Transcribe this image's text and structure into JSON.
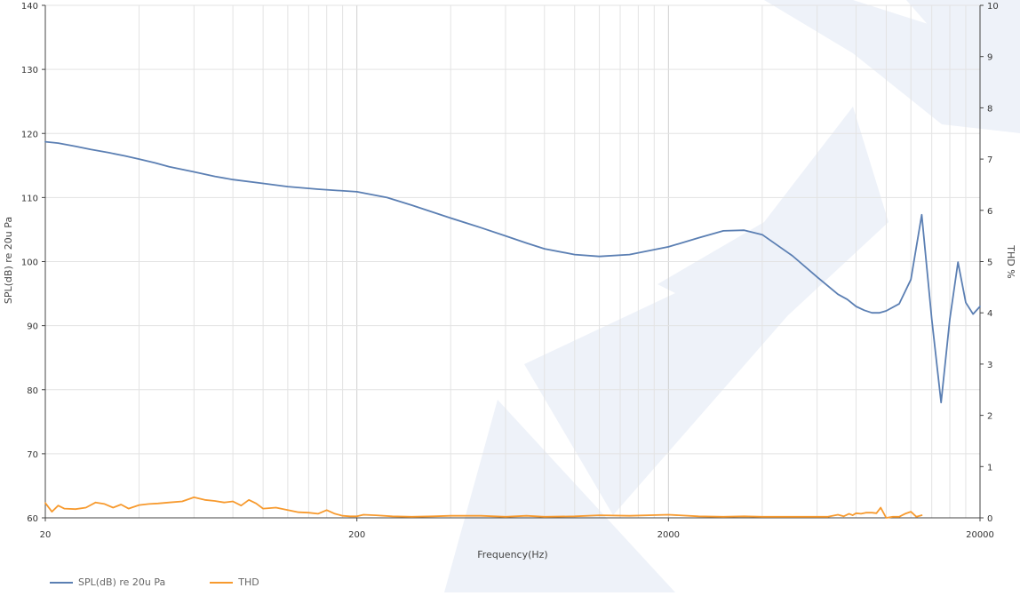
{
  "chart_data": {
    "type": "line",
    "title": "",
    "xlabel": "Frequency(Hz)",
    "ylabel": "SPL(dB) re 20u Pa",
    "y2label": "THD %",
    "x_scale": "log",
    "xlim": [
      20,
      20000
    ],
    "ylim": [
      60,
      140
    ],
    "y2lim": [
      0,
      10
    ],
    "x_ticks": [
      "20",
      "200",
      "2000",
      "20000"
    ],
    "y_ticks": [
      "60",
      "70",
      "80",
      "90",
      "100",
      "110",
      "120",
      "130",
      "140"
    ],
    "y2_ticks": [
      "0",
      "1",
      "2",
      "3",
      "4",
      "5",
      "6",
      "7",
      "8",
      "9",
      "10"
    ],
    "grid": true,
    "legend_position": "bottom-left",
    "series": [
      {
        "name": "SPL(dB) re 20u Pa",
        "axis": "left",
        "color": "#5b7fb3",
        "x": [
          20,
          22,
          25,
          28,
          32,
          36,
          40,
          45,
          50,
          60,
          70,
          80,
          100,
          120,
          150,
          200,
          250,
          300,
          400,
          500,
          600,
          700,
          800,
          1000,
          1200,
          1500,
          2000,
          2500,
          3000,
          3500,
          4000,
          5000,
          6000,
          7000,
          7500,
          8000,
          8500,
          9000,
          9500,
          10000,
          11000,
          12000,
          13000,
          14000,
          15000,
          16000,
          17000,
          18000,
          19000,
          20000
        ],
        "y": [
          118.7,
          118.5,
          118.0,
          117.5,
          117.0,
          116.5,
          116.0,
          115.4,
          114.8,
          114.0,
          113.3,
          112.8,
          112.2,
          111.7,
          111.3,
          110.9,
          110.0,
          108.8,
          106.8,
          105.3,
          104.0,
          102.9,
          102.0,
          101.1,
          100.8,
          101.1,
          102.3,
          103.7,
          104.8,
          104.9,
          104.2,
          100.9,
          97.6,
          94.9,
          94.1,
          93.0,
          92.4,
          92.0,
          92.0,
          92.3,
          93.4,
          97.2,
          107.3,
          91.0,
          78.0,
          91.0,
          99.9,
          93.6,
          91.8,
          93.0
        ]
      },
      {
        "name": "THD",
        "axis": "right",
        "color": "#f79a2e",
        "x": [
          20,
          21,
          22,
          23,
          25,
          27,
          29,
          31,
          33,
          35,
          37,
          40,
          43,
          46,
          50,
          55,
          60,
          65,
          70,
          75,
          80,
          85,
          90,
          95,
          100,
          110,
          120,
          130,
          140,
          150,
          160,
          170,
          180,
          190,
          200,
          210,
          230,
          260,
          300,
          350,
          400,
          500,
          600,
          700,
          800,
          1000,
          1200,
          1500,
          2000,
          2500,
          3000,
          3500,
          4000,
          4500,
          5000,
          5500,
          6000,
          6500,
          7000,
          7300,
          7600,
          7800,
          8000,
          8300,
          8600,
          9000,
          9300,
          9600,
          10000,
          10500,
          11000,
          11500,
          12000,
          12500,
          13000
        ],
        "y": [
          0.29,
          0.12,
          0.24,
          0.18,
          0.17,
          0.2,
          0.3,
          0.27,
          0.2,
          0.26,
          0.18,
          0.25,
          0.27,
          0.28,
          0.3,
          0.32,
          0.4,
          0.35,
          0.33,
          0.3,
          0.32,
          0.24,
          0.35,
          0.28,
          0.18,
          0.2,
          0.15,
          0.11,
          0.1,
          0.08,
          0.15,
          0.08,
          0.04,
          0.03,
          0.03,
          0.06,
          0.05,
          0.03,
          0.02,
          0.03,
          0.04,
          0.04,
          0.02,
          0.04,
          0.02,
          0.03,
          0.05,
          0.04,
          0.06,
          0.03,
          0.02,
          0.03,
          0.02,
          0.02,
          0.02,
          0.02,
          0.02,
          0.02,
          0.06,
          0.03,
          0.08,
          0.05,
          0.09,
          0.08,
          0.1,
          0.1,
          0.09,
          0.2,
          0.0,
          0.02,
          0.02,
          0.08,
          0.12,
          0.02,
          0.05
        ]
      }
    ]
  }
}
